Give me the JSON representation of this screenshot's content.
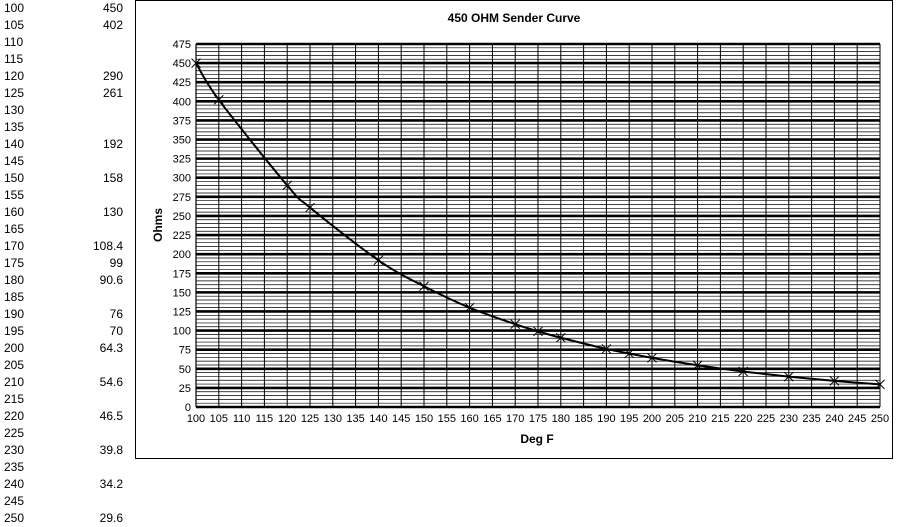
{
  "spreadsheet": {
    "rows": [
      {
        "a": "100",
        "b": "450"
      },
      {
        "a": "105",
        "b": "402"
      },
      {
        "a": "110",
        "b": ""
      },
      {
        "a": "115",
        "b": ""
      },
      {
        "a": "120",
        "b": "290"
      },
      {
        "a": "125",
        "b": "261"
      },
      {
        "a": "130",
        "b": ""
      },
      {
        "a": "135",
        "b": ""
      },
      {
        "a": "140",
        "b": "192"
      },
      {
        "a": "145",
        "b": ""
      },
      {
        "a": "150",
        "b": "158"
      },
      {
        "a": "155",
        "b": ""
      },
      {
        "a": "160",
        "b": "130"
      },
      {
        "a": "165",
        "b": ""
      },
      {
        "a": "170",
        "b": "108.4"
      },
      {
        "a": "175",
        "b": "99"
      },
      {
        "a": "180",
        "b": "90.6"
      },
      {
        "a": "185",
        "b": ""
      },
      {
        "a": "190",
        "b": "76"
      },
      {
        "a": "195",
        "b": "70"
      },
      {
        "a": "200",
        "b": "64.3"
      },
      {
        "a": "205",
        "b": ""
      },
      {
        "a": "210",
        "b": "54.6"
      },
      {
        "a": "215",
        "b": ""
      },
      {
        "a": "220",
        "b": "46.5"
      },
      {
        "a": "225",
        "b": ""
      },
      {
        "a": "230",
        "b": "39.8"
      },
      {
        "a": "235",
        "b": ""
      },
      {
        "a": "240",
        "b": "34.2"
      },
      {
        "a": "245",
        "b": ""
      },
      {
        "a": "250",
        "b": "29.6"
      }
    ]
  },
  "chart_data": {
    "type": "scatter",
    "title": "450 OHM Sender Curve",
    "xlabel": "Deg F",
    "ylabel": "Ohms",
    "xlim": [
      100,
      250
    ],
    "ylim": [
      0,
      475
    ],
    "x_ticks": [
      100,
      105,
      110,
      115,
      120,
      125,
      130,
      135,
      140,
      145,
      150,
      155,
      160,
      165,
      170,
      175,
      180,
      185,
      190,
      195,
      200,
      205,
      210,
      215,
      220,
      225,
      230,
      235,
      240,
      245,
      250
    ],
    "y_ticks": [
      0,
      25,
      50,
      75,
      100,
      125,
      150,
      175,
      200,
      225,
      250,
      275,
      300,
      325,
      350,
      375,
      400,
      425,
      450,
      475
    ],
    "grid": true,
    "marker": "x",
    "smooth_line": true,
    "series": [
      {
        "x": [
          100,
          105,
          120,
          125,
          140,
          150,
          160,
          170,
          175,
          180,
          190,
          195,
          200,
          210,
          220,
          230,
          240,
          250
        ],
        "y": [
          450,
          402,
          290,
          261,
          192,
          158,
          130,
          108.4,
          99,
          90.6,
          76,
          70,
          64.3,
          54.6,
          46.5,
          39.8,
          34.2,
          29.6
        ]
      }
    ]
  }
}
